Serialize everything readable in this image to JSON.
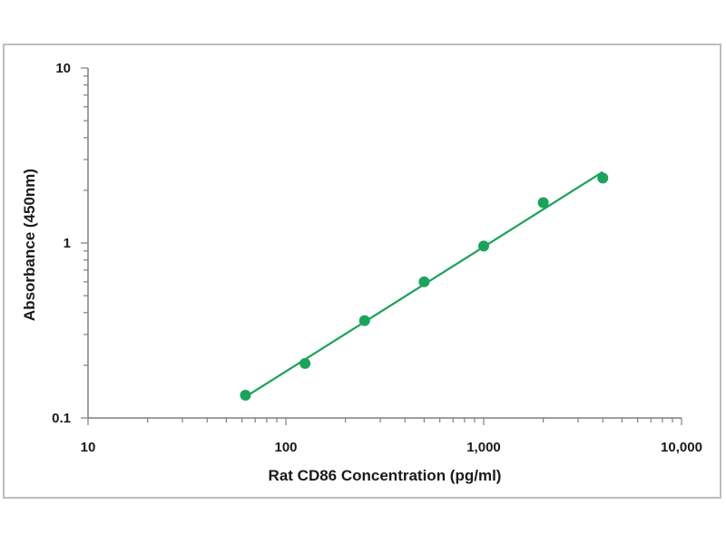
{
  "chart_data": {
    "type": "scatter",
    "title": "",
    "xlabel": "Rat CD86 Concentration (pg/ml)",
    "ylabel": "Absorbance (450nm)",
    "x_scale": "log",
    "y_scale": "log",
    "xlim": [
      10,
      10000
    ],
    "ylim": [
      0.1,
      10
    ],
    "x_tick_labels": [
      "10",
      "100",
      "1,000",
      "10,000"
    ],
    "y_tick_labels": [
      "0.1",
      "1",
      "10"
    ],
    "grid": false,
    "legend": "none",
    "series": [
      {
        "x": [
          62.5,
          125,
          250,
          500,
          1000,
          2000,
          4000
        ],
        "y": [
          0.135,
          0.205,
          0.36,
          0.6,
          0.96,
          1.7,
          2.35
        ],
        "fit_line": {
          "x": [
            62.5,
            4000
          ],
          "y": [
            0.132,
            2.55
          ]
        }
      }
    ],
    "colors": {
      "series": "#1aa35a",
      "axis": "#7f7f7f",
      "text": "#1a1a1a"
    }
  }
}
